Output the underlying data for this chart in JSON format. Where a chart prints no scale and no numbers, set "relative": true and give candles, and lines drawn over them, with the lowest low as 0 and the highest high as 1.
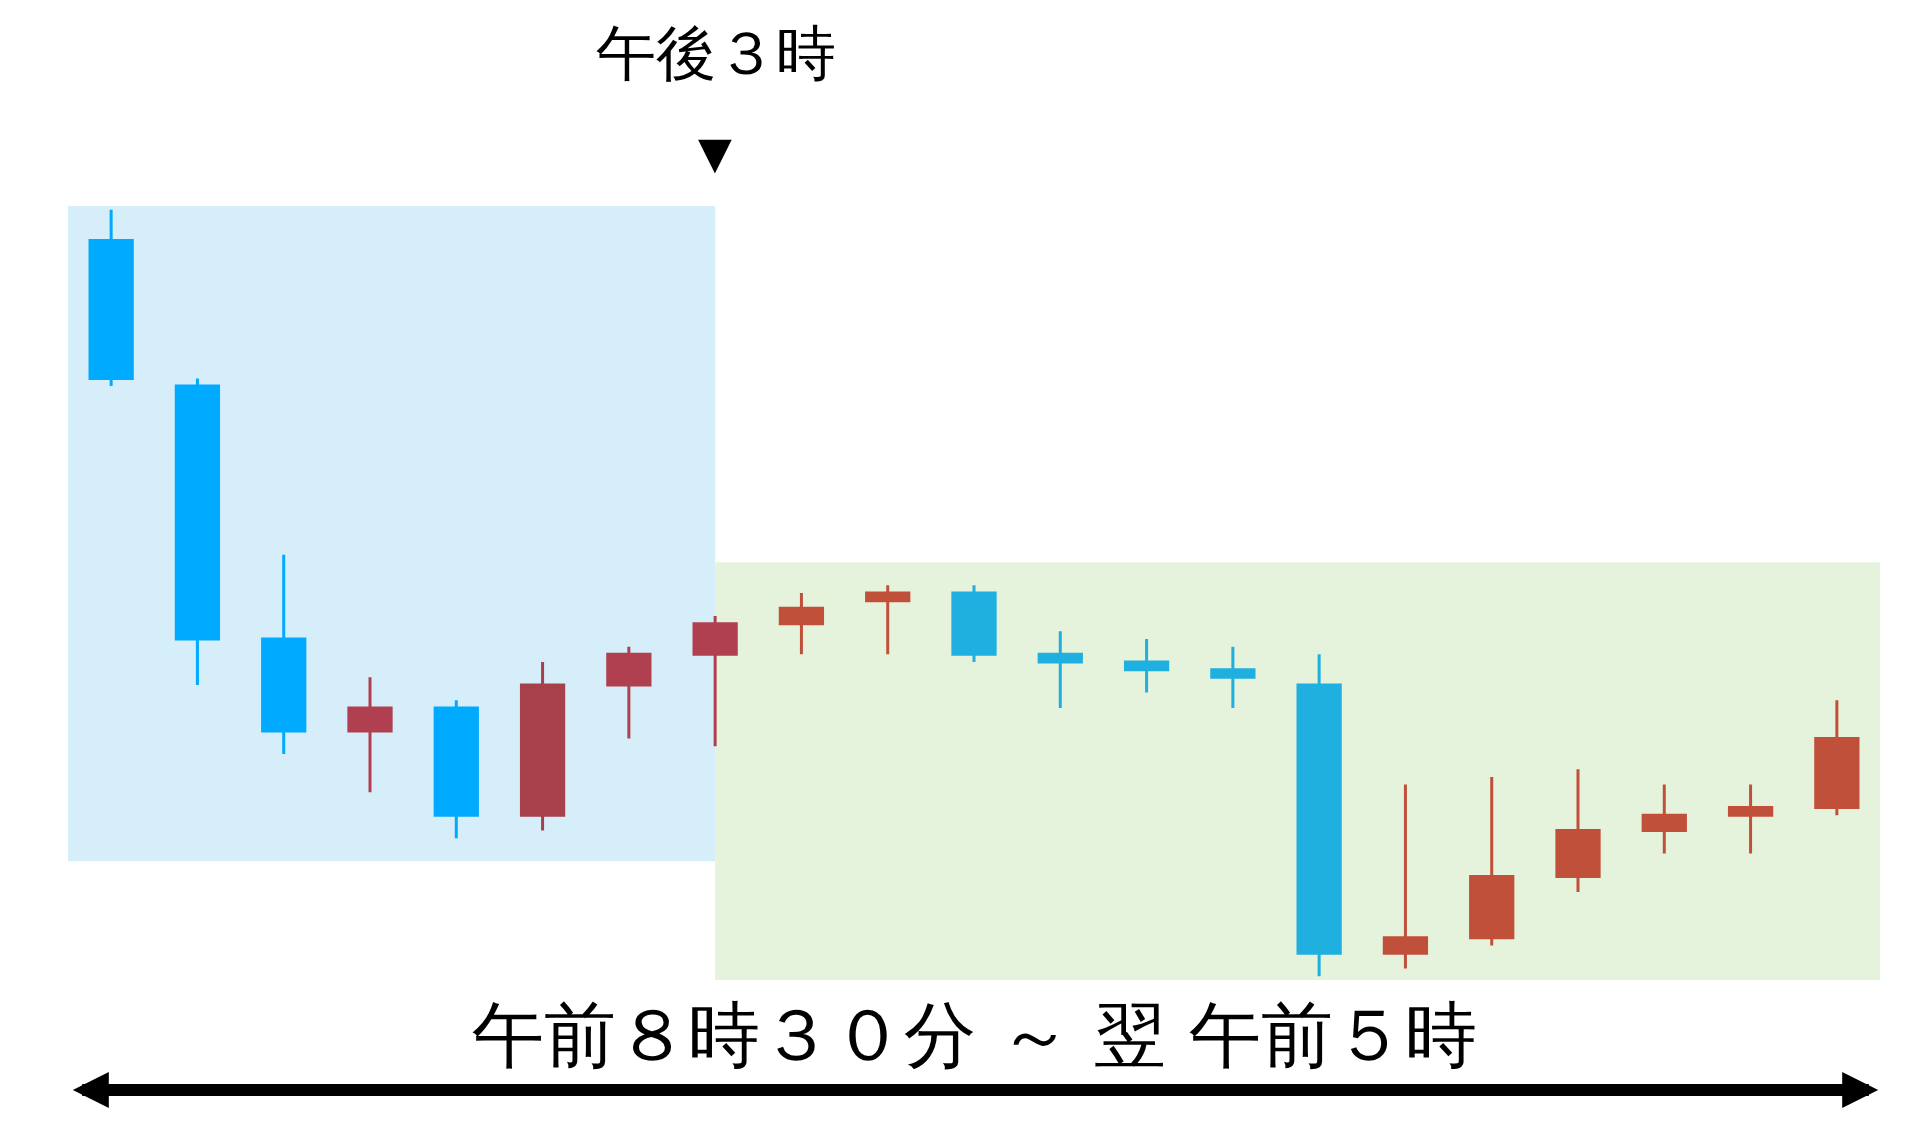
{
  "chart_data": {
    "type": "candlestick",
    "relative": true,
    "categories": [
      null,
      null,
      null,
      null,
      null,
      null,
      null,
      null,
      null,
      null,
      null,
      null,
      null,
      null,
      null,
      null,
      null,
      null,
      null,
      null,
      null
    ],
    "ohlc": [
      [
        0.96,
        1.0,
        0.77,
        0.78
      ],
      [
        0.77,
        0.78,
        0.38,
        0.44
      ],
      [
        0.44,
        0.55,
        0.29,
        0.32
      ],
      [
        0.32,
        0.39,
        0.24,
        0.35
      ],
      [
        0.35,
        0.36,
        0.18,
        0.21
      ],
      [
        0.21,
        0.41,
        0.19,
        0.38
      ],
      [
        0.38,
        0.43,
        0.31,
        0.42
      ],
      [
        0.42,
        0.47,
        0.3,
        0.46
      ],
      [
        0.46,
        0.5,
        0.42,
        0.48
      ],
      [
        0.49,
        0.51,
        0.42,
        0.5
      ],
      [
        0.5,
        0.51,
        0.41,
        0.42
      ],
      [
        0.42,
        0.45,
        0.35,
        0.41
      ],
      [
        0.41,
        0.44,
        0.37,
        0.4
      ],
      [
        0.4,
        0.43,
        0.35,
        0.39
      ],
      [
        0.38,
        0.42,
        0.0,
        0.03
      ],
      [
        0.03,
        0.25,
        0.01,
        0.05
      ],
      [
        0.05,
        0.26,
        0.04,
        0.13
      ],
      [
        0.13,
        0.27,
        0.11,
        0.19
      ],
      [
        0.19,
        0.25,
        0.16,
        0.21
      ],
      [
        0.21,
        0.25,
        0.16,
        0.22
      ],
      [
        0.22,
        0.36,
        0.21,
        0.31
      ]
    ],
    "colors": [
      "#00aaff",
      "#00aaff",
      "#00aaff",
      "#b04050",
      "#00aaff",
      "#a8404c",
      "#b04050",
      "#b04050",
      "#c0503a",
      "#c0503a",
      "#1fb0e0",
      "#1fb0e0",
      "#1fb0e0",
      "#1fb0e0",
      "#1fb0e0",
      "#c0503a",
      "#c0503a",
      "#c0503a",
      "#c0503a",
      "#c0503a",
      "#c0503a"
    ],
    "annotations": [
      "午後３時",
      "▼",
      "午前８時３０分 ～ 翌 午前５時"
    ],
    "legend": false
  }
}
